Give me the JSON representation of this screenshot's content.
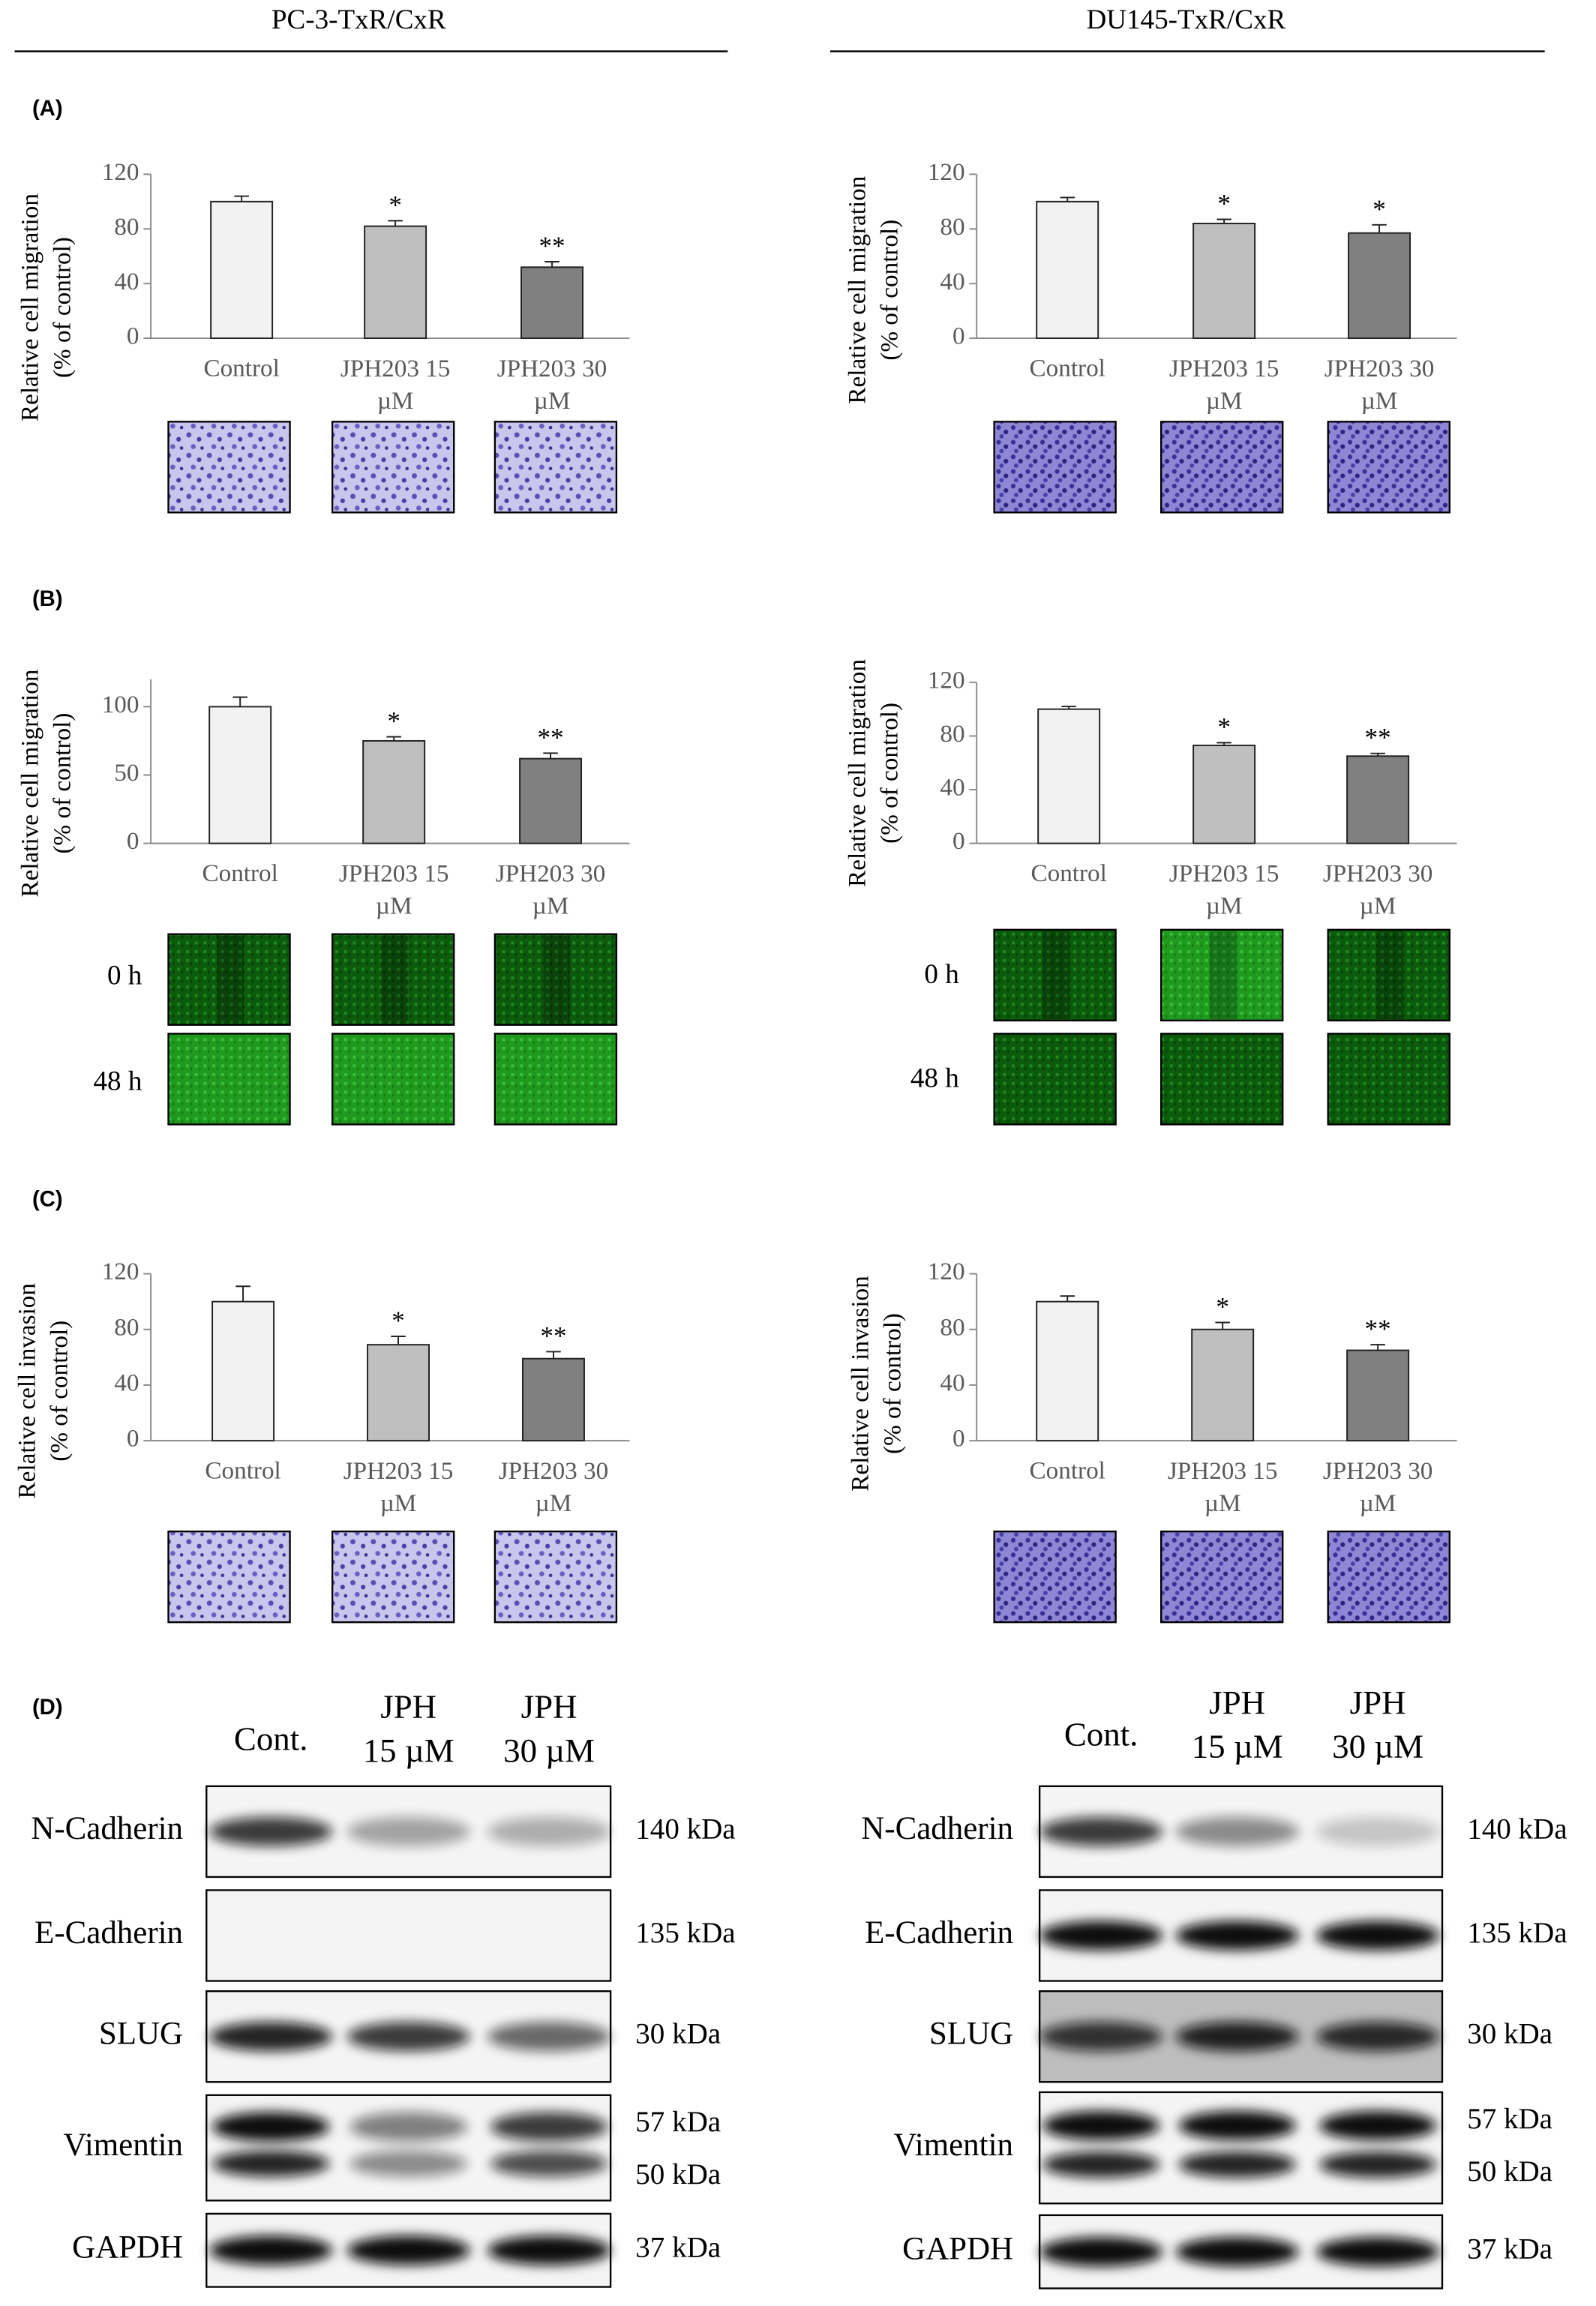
{
  "columns": [
    "PC-3-TxR/CxR",
    "DU145-TxR/CxR"
  ],
  "panels": [
    "(A)",
    "(B)",
    "(C)",
    "(D)"
  ],
  "chart_data": [
    {
      "type": "bar",
      "ylabel": [
        "Relative cell migration",
        "(% of control)"
      ],
      "categories": [
        "Control",
        "JPH203 15 µM",
        "JPH203 30 µM"
      ],
      "values": [
        100,
        82,
        52
      ],
      "errors": [
        4,
        4,
        4
      ],
      "significance": [
        null,
        "*",
        "**"
      ],
      "colors": [
        "#f2f2f2",
        "#bfbfbf",
        "#808080"
      ],
      "ylim": [
        0,
        120
      ],
      "yticks": [
        0,
        40,
        80,
        120
      ]
    },
    {
      "type": "bar",
      "ylabel": [
        "Relative cell migration",
        "(% of control)"
      ],
      "categories": [
        "Control",
        "JPH203 15 µM",
        "JPH203 30 µM"
      ],
      "values": [
        100,
        84,
        77
      ],
      "errors": [
        3,
        3,
        6
      ],
      "significance": [
        null,
        "*",
        "*"
      ],
      "colors": [
        "#f2f2f2",
        "#bfbfbf",
        "#808080"
      ],
      "ylim": [
        0,
        120
      ],
      "yticks": [
        0,
        40,
        80,
        120
      ]
    },
    {
      "type": "bar",
      "ylabel": [
        "Relative cell migration",
        "(% of control)"
      ],
      "categories": [
        "Control",
        "JPH203 15 µM",
        "JPH203 30 µM"
      ],
      "values": [
        100,
        75,
        62
      ],
      "errors": [
        7,
        3,
        4
      ],
      "significance": [
        null,
        "*",
        "**"
      ],
      "colors": [
        "#f2f2f2",
        "#bfbfbf",
        "#808080"
      ],
      "ylim": [
        0,
        120
      ],
      "yticks": [
        0,
        50,
        100
      ]
    },
    {
      "type": "bar",
      "ylabel": [
        "Relative cell migration",
        "(% of control)"
      ],
      "categories": [
        "Control",
        "JPH203 15 µM",
        "JPH203 30 µM"
      ],
      "values": [
        100,
        73,
        65
      ],
      "errors": [
        2,
        2,
        2
      ],
      "significance": [
        null,
        "*",
        "**"
      ],
      "colors": [
        "#f2f2f2",
        "#bfbfbf",
        "#808080"
      ],
      "ylim": [
        0,
        120
      ],
      "yticks": [
        0,
        40,
        80,
        120
      ]
    },
    {
      "type": "bar",
      "ylabel": [
        "Relative cell invasion",
        "(% of control)"
      ],
      "categories": [
        "Control",
        "JPH203 15 µM",
        "JPH203 30 µM"
      ],
      "values": [
        100,
        69,
        59
      ],
      "errors": [
        11,
        6,
        5
      ],
      "significance": [
        null,
        "*",
        "**"
      ],
      "colors": [
        "#f2f2f2",
        "#bfbfbf",
        "#808080"
      ],
      "ylim": [
        0,
        120
      ],
      "yticks": [
        0,
        40,
        80,
        120
      ]
    },
    {
      "type": "bar",
      "ylabel": [
        "Relative cell invasion",
        "(% of control)"
      ],
      "categories": [
        "Control",
        "JPH203 15 µM",
        "JPH203 30 µM"
      ],
      "values": [
        100,
        80,
        65
      ],
      "errors": [
        4,
        5,
        4
      ],
      "significance": [
        null,
        "*",
        "**"
      ],
      "colors": [
        "#f2f2f2",
        "#bfbfbf",
        "#808080"
      ],
      "ylim": [
        0,
        120
      ],
      "yticks": [
        0,
        40,
        80,
        120
      ]
    }
  ],
  "wound_times": [
    "0 h",
    "48 h"
  ],
  "blots": [
    {
      "lanes": [
        [
          "Cont."
        ],
        [
          "JPH",
          "15 µM"
        ],
        [
          "JPH",
          "30 µM"
        ]
      ],
      "rows": [
        {
          "name": "N-Cadherin",
          "kda": [
            "140 kDa"
          ]
        },
        {
          "name": "E-Cadherin",
          "kda": [
            "135 kDa"
          ]
        },
        {
          "name": "SLUG",
          "kda": [
            "30 kDa"
          ]
        },
        {
          "name": "Vimentin",
          "kda": [
            "57 kDa",
            "50 kDa"
          ]
        },
        {
          "name": "GAPDH",
          "kda": [
            "37 kDa"
          ]
        }
      ]
    },
    {
      "lanes": [
        [
          "Cont."
        ],
        [
          "JPH",
          "15 µM"
        ],
        [
          "JPH",
          "30 µM"
        ]
      ],
      "rows": [
        {
          "name": "N-Cadherin",
          "kda": [
            "140 kDa"
          ]
        },
        {
          "name": "E-Cadherin",
          "kda": [
            "135 kDa"
          ]
        },
        {
          "name": "SLUG",
          "kda": [
            "30 kDa"
          ]
        },
        {
          "name": "Vimentin",
          "kda": [
            "57 kDa",
            "50 kDa"
          ]
        },
        {
          "name": "GAPDH",
          "kda": [
            "37 kDa"
          ]
        }
      ]
    }
  ]
}
